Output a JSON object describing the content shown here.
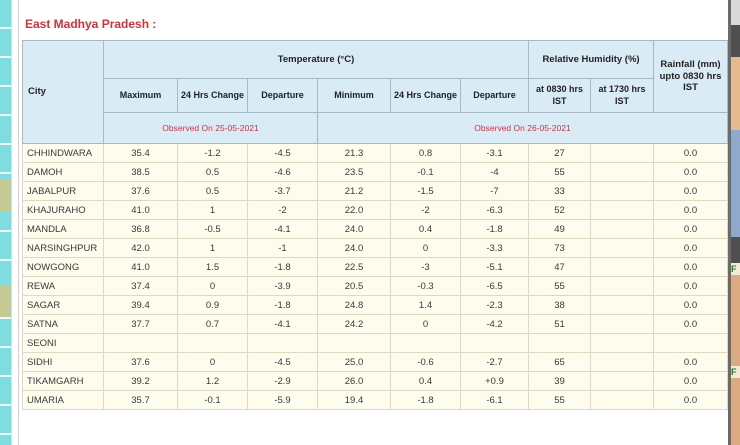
{
  "page": {
    "title": "East Madhya Pradesh :"
  },
  "table": {
    "header": {
      "city": "City",
      "temperature_group": "Temperature (°C)",
      "humidity_group": "Relative Humidity (%)",
      "rainfall": "Rainfall (mm) upto 0830 hrs IST",
      "sub_headers": [
        "Maximum",
        "24 Hrs Change",
        "Departure",
        "Minimum",
        "24 Hrs Change",
        "Departure",
        "at 0830 hrs IST",
        "at 1730 hrs IST"
      ]
    },
    "observed": {
      "left": "Observed On 25-05-2021",
      "right": "Observed On 26-05-2021"
    },
    "rows": [
      {
        "city": "CHHINDWARA",
        "values": [
          "35.4",
          "-1.2",
          "-4.5",
          "21.3",
          "0.8",
          "-3.1",
          "27",
          "",
          "0.0"
        ]
      },
      {
        "city": "DAMOH",
        "values": [
          "38.5",
          "0.5",
          "-4.6",
          "23.5",
          "-0.1",
          "-4",
          "55",
          "",
          "0.0"
        ]
      },
      {
        "city": "JABALPUR",
        "values": [
          "37.6",
          "0.5",
          "-3.7",
          "21.2",
          "-1.5",
          "-7",
          "33",
          "",
          "0.0"
        ]
      },
      {
        "city": "KHAJURAHO",
        "values": [
          "41.0",
          "1",
          "-2",
          "22.0",
          "-2",
          "-6.3",
          "52",
          "",
          "0.0"
        ]
      },
      {
        "city": "MANDLA",
        "values": [
          "36.8",
          "-0.5",
          "-4.1",
          "24.0",
          "0.4",
          "-1.8",
          "49",
          "",
          "0.0"
        ]
      },
      {
        "city": "NARSINGHPUR",
        "values": [
          "42.0",
          "1",
          "-1",
          "24.0",
          "0",
          "-3.3",
          "73",
          "",
          "0.0"
        ]
      },
      {
        "city": "NOWGONG",
        "values": [
          "41.0",
          "1.5",
          "-1.8",
          "22.5",
          "-3",
          "-5.1",
          "47",
          "",
          "0.0"
        ]
      },
      {
        "city": "REWA",
        "values": [
          "37.4",
          "0",
          "-3.9",
          "20.5",
          "-0.3",
          "-6.5",
          "55",
          "",
          "0.0"
        ]
      },
      {
        "city": "SAGAR",
        "values": [
          "39.4",
          "0.9",
          "-1.8",
          "24.8",
          "1.4",
          "-2.3",
          "38",
          "",
          "0.0"
        ]
      },
      {
        "city": "SATNA",
        "values": [
          "37.7",
          "0.7",
          "-4.1",
          "24.2",
          "0",
          "-4.2",
          "51",
          "",
          "0.0"
        ]
      },
      {
        "city": "SEONI",
        "values": [
          "",
          "",
          "",
          "",
          "",
          "",
          "",
          "",
          ""
        ]
      },
      {
        "city": "SIDHI",
        "values": [
          "37.6",
          "0",
          "-4.5",
          "25.0",
          "-0.6",
          "-2.7",
          "65",
          "",
          "0.0"
        ]
      },
      {
        "city": "TIKAMGARH",
        "values": [
          "39.2",
          "1.2",
          "-2.9",
          "26.0",
          "0.4",
          "+0.9",
          "39",
          "",
          "0.0"
        ]
      },
      {
        "city": "UMARIA",
        "values": [
          "35.7",
          "-0.1",
          "-5.9",
          "19.4",
          "-1.8",
          "-6.1",
          "55",
          "",
          "0.0"
        ]
      }
    ]
  },
  "right_strip": {
    "labels": [
      "F",
      "F"
    ]
  },
  "colors": {
    "title_red": "#cb333d",
    "observed_red": "#cb3344",
    "header_blue": "#d9ecf5",
    "row_ivory": "#fdfced",
    "left_strip_cyan": "#7fdde0",
    "left_strip_olive": "#c5ca92"
  }
}
